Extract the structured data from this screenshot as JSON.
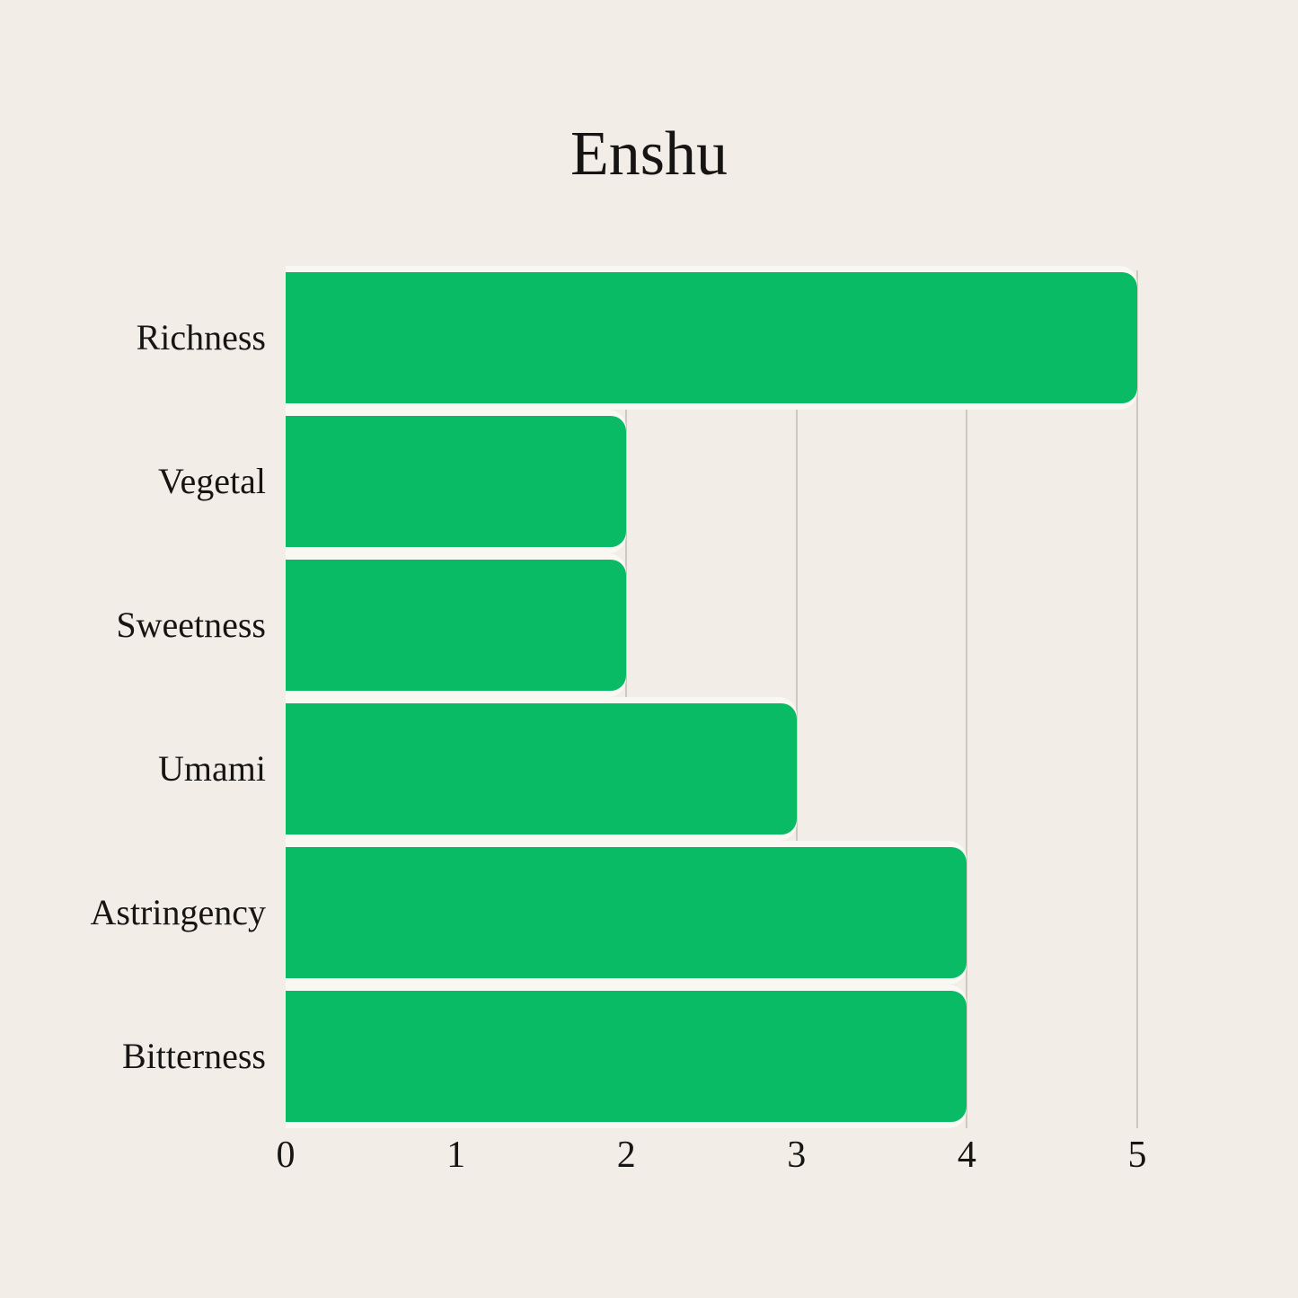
{
  "chart_data": {
    "type": "bar",
    "orientation": "horizontal",
    "title": "Enshu",
    "categories": [
      "Richness",
      "Vegetal",
      "Sweetness",
      "Umami",
      "Astringency",
      "Bitterness"
    ],
    "values": [
      5,
      2,
      2,
      3,
      4,
      4
    ],
    "xlabel": "",
    "ylabel": "",
    "xlim": [
      0,
      5
    ],
    "x_ticks": [
      "0",
      "1",
      "2",
      "3",
      "4",
      "5"
    ],
    "grid": "vertical-gridlines-at-each-unit",
    "legend": "none",
    "colors": {
      "bar": "#0abb65",
      "background": "#f2eee7",
      "gridline": "#cdc9c1",
      "bar_separator": "#faf8f3",
      "text": "#161514"
    }
  }
}
